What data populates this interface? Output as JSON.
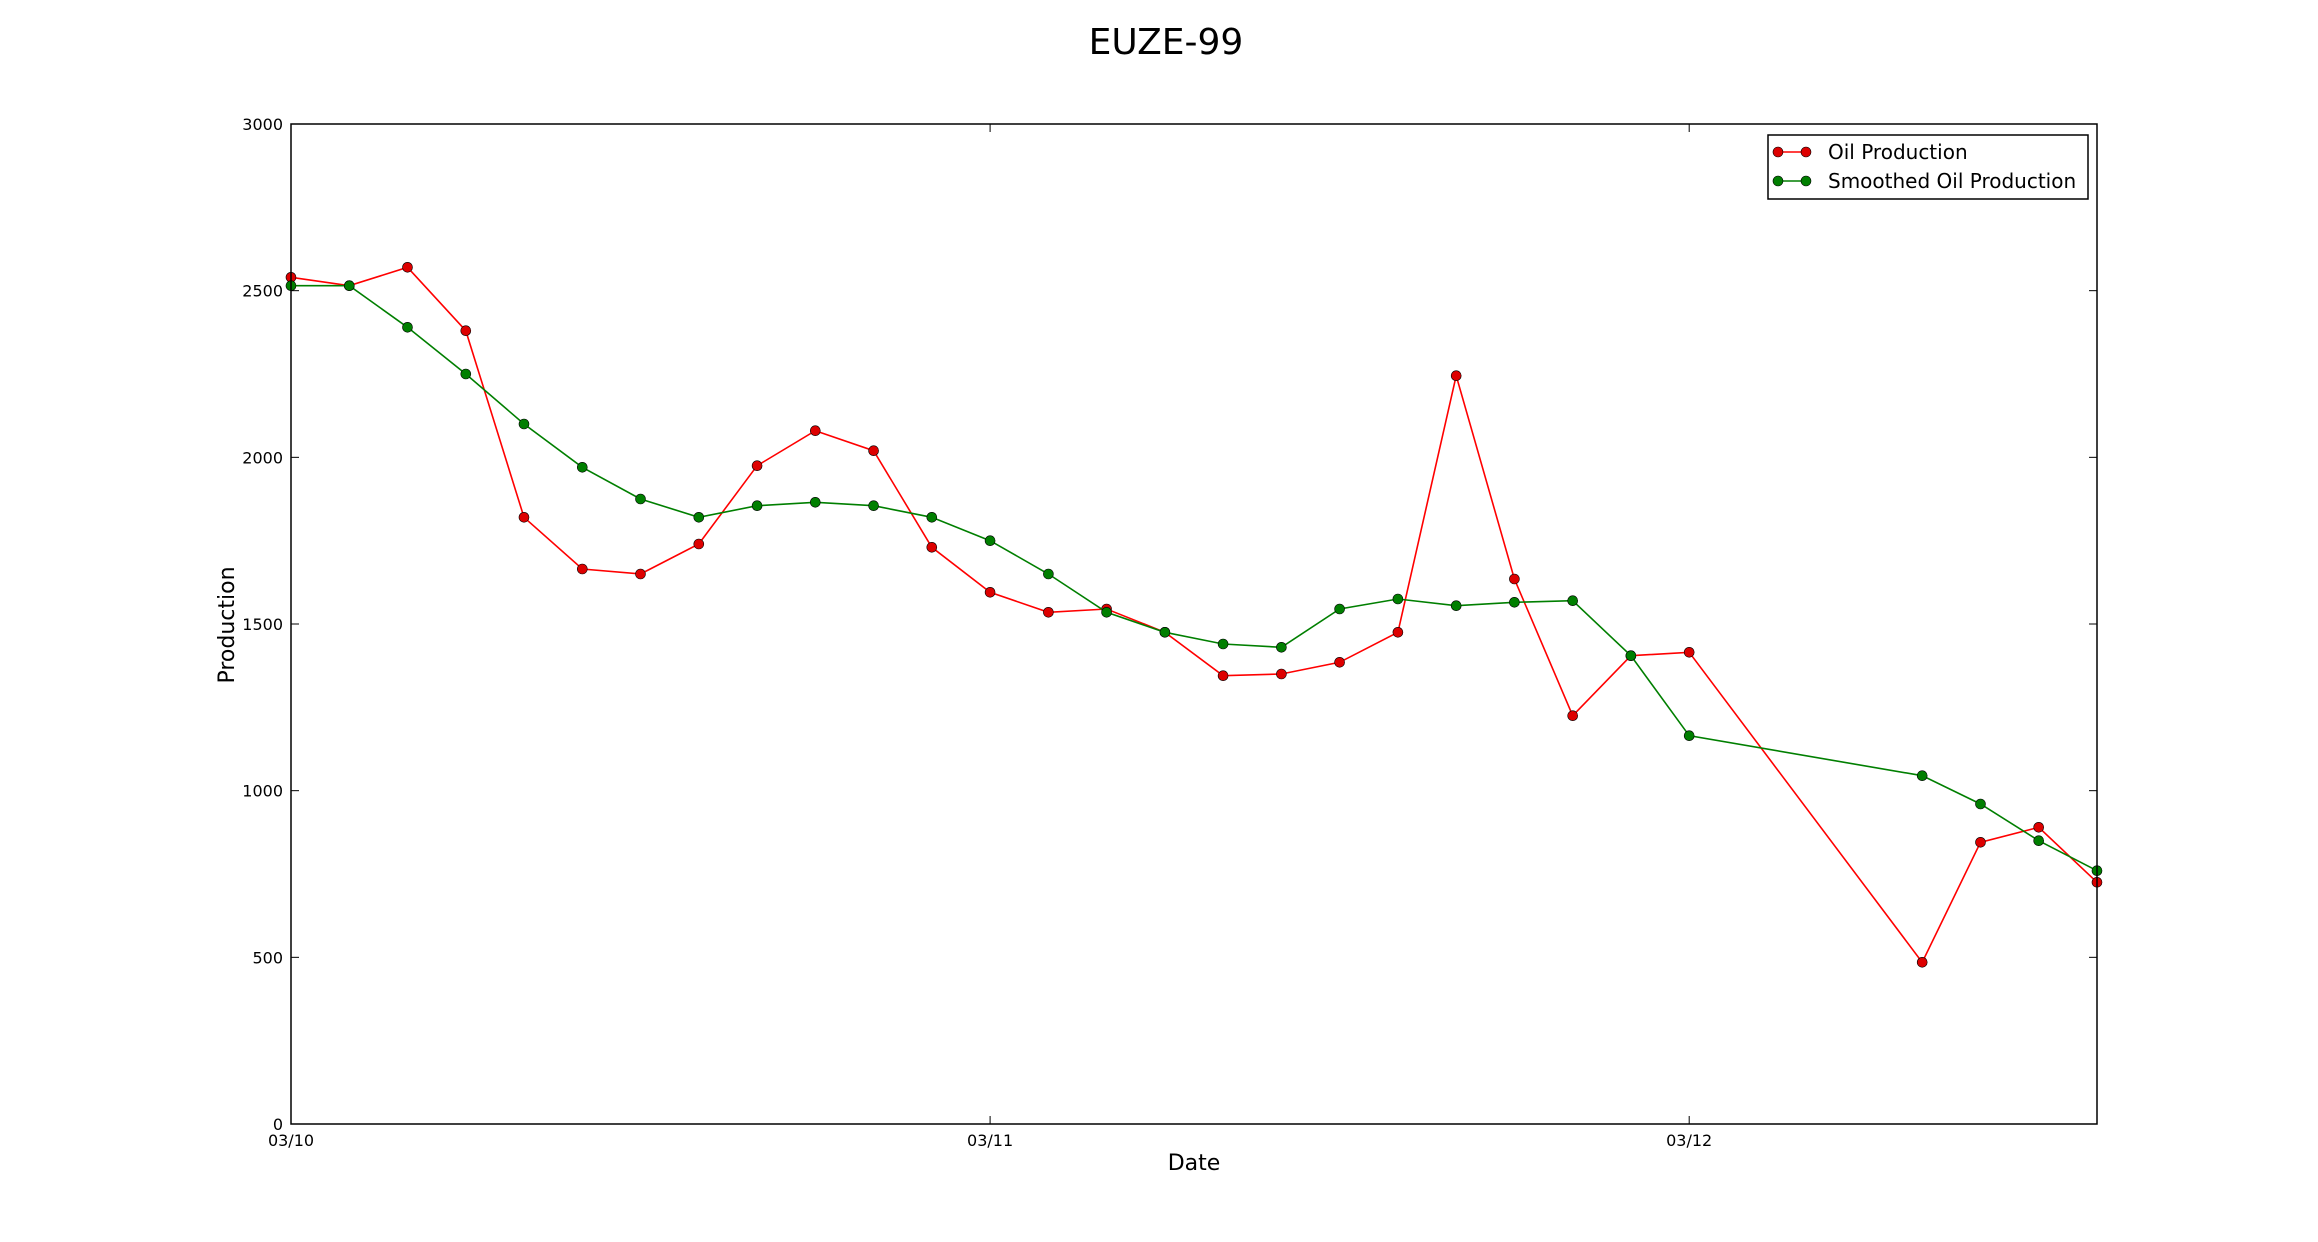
{
  "chart_data": {
    "type": "line",
    "title": "EUZE-99",
    "xlabel": "Date",
    "ylabel": "Production",
    "ylim": [
      0,
      3000
    ],
    "yticks": [
      0,
      500,
      1000,
      1500,
      2000,
      2500,
      3000
    ],
    "xlim": [
      "03/10 00:00",
      "03/12 14:00"
    ],
    "xticks": [
      {
        "label": "03/10",
        "x": "03/10 00:00"
      },
      {
        "label": "03/11",
        "x": "03/11 00:00"
      },
      {
        "label": "03/12",
        "x": "03/12 00:00"
      }
    ],
    "grid": false,
    "legend": "top-right",
    "x": [
      "03/10 00:00",
      "03/10 02:00",
      "03/10 04:00",
      "03/10 06:00",
      "03/10 08:00",
      "03/10 10:00",
      "03/10 12:00",
      "03/10 14:00",
      "03/10 16:00",
      "03/10 18:00",
      "03/10 20:00",
      "03/10 22:00",
      "03/11 00:00",
      "03/11 02:00",
      "03/11 04:00",
      "03/11 06:00",
      "03/11 08:00",
      "03/11 10:00",
      "03/11 12:00",
      "03/11 14:00",
      "03/11 16:00",
      "03/11 18:00",
      "03/11 20:00",
      "03/11 22:00",
      "03/12 00:00",
      "03/12 08:00",
      "03/12 10:00",
      "03/12 12:00",
      "03/12 14:00"
    ],
    "series": [
      {
        "name": "Oil Production",
        "color": "#ff0000",
        "marker_color": "#dd0000",
        "values": [
          2540,
          2515,
          2570,
          2380,
          1820,
          1665,
          1650,
          1740,
          1975,
          2080,
          2020,
          1730,
          1595,
          1535,
          1545,
          1475,
          1345,
          1350,
          1385,
          1475,
          2245,
          1635,
          1225,
          1405,
          1415,
          485,
          845,
          890,
          725
        ]
      },
      {
        "name": "Smoothed Oil Production",
        "color": "#007f00",
        "marker_color": "#007f00",
        "values": [
          2515,
          2515,
          2390,
          2250,
          2100,
          1970,
          1875,
          1820,
          1855,
          1865,
          1855,
          1820,
          1750,
          1650,
          1535,
          1475,
          1440,
          1430,
          1545,
          1575,
          1555,
          1565,
          1570,
          1405,
          1165,
          1045,
          960,
          850,
          760
        ]
      }
    ]
  }
}
